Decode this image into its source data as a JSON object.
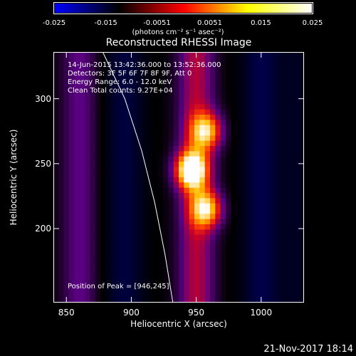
{
  "colorbar": {
    "tick_labels": [
      "-0.025",
      "-0.015",
      "-0.0051",
      "0.0051",
      "0.015",
      "0.025"
    ],
    "units": "(photons cm⁻² s⁻¹ asec⁻²)",
    "colors": [
      "#0000ff",
      "#000000",
      "#ff0000",
      "#ffff00",
      "#ffffff"
    ]
  },
  "chart_data": {
    "type": "heatmap",
    "title": "Reconstructed RHESSI Image",
    "xlabel": "Heliocentric X (arcsec)",
    "ylabel": "Heliocentric Y (arcsec)",
    "xlim": [
      840,
      1033
    ],
    "ylim": [
      143,
      336
    ],
    "x_ticks": [
      "850",
      "900",
      "950",
      "1000"
    ],
    "y_ticks": [
      "200",
      "250",
      "300"
    ],
    "clim": [
      -0.025,
      0.025
    ],
    "sources": [
      {
        "x": 946,
        "y": 245,
        "peak": 0.025
      },
      {
        "x": 958,
        "y": 215,
        "peak": 0.018
      },
      {
        "x": 958,
        "y": 275,
        "peak": 0.017
      }
    ],
    "bands": [
      {
        "x_center": 860,
        "level": 0.006
      },
      {
        "x_center": 895,
        "level": -0.006
      },
      {
        "x_center": 950,
        "level": 0.01
      },
      {
        "x_center": 1000,
        "level": -0.007
      },
      {
        "x_center": 1028,
        "level": -0.003
      }
    ],
    "limb_curve": [
      {
        "x": 878,
        "y": 336
      },
      {
        "x": 895,
        "y": 300
      },
      {
        "x": 908,
        "y": 260
      },
      {
        "x": 918,
        "y": 220
      },
      {
        "x": 926,
        "y": 180
      },
      {
        "x": 932,
        "y": 143
      }
    ],
    "info_lines": [
      "14-Jun-2015 13:42:36.000 to 13:52:36.000",
      "Detectors: 3F 5F 6F 7F 8F 9F, Att 0",
      "Energy Range: 6.0 - 12.0 keV",
      "Clean    Total counts: 9.27E+04"
    ],
    "peak_annotation": "Position of Peak = [946,245]"
  },
  "footer": {
    "date": "21-Nov-2017 18:14"
  }
}
